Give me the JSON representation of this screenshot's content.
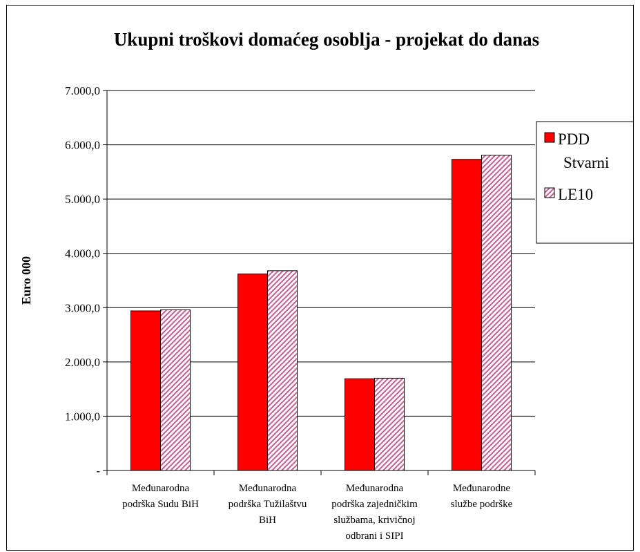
{
  "chart_data": {
    "type": "bar",
    "title": "Ukupni troškovi domaćeg osoblja - projekat do danas",
    "xlabel": "",
    "ylabel": "Euro 000",
    "ylim": [
      0,
      7000
    ],
    "yticks": [
      0,
      1000,
      2000,
      3000,
      4000,
      5000,
      6000,
      7000
    ],
    "ytick_labels": [
      "-",
      "1.000,0",
      "2.000,0",
      "3.000,0",
      "4.000,0",
      "5.000,0",
      "6.000,0",
      "7.000,0"
    ],
    "grid": true,
    "legend_position": "right",
    "categories": [
      [
        "Međunarodna",
        "podrška Sudu BiH"
      ],
      [
        "Međunarodna",
        "podrška Tužilaštvu",
        "BiH"
      ],
      [
        "Međunarodna",
        "podrška zajedničkim",
        "službama, krivičnoj",
        "odbrani i SIPI"
      ],
      [
        "Međunarodne",
        "službe podrške"
      ]
    ],
    "series": [
      {
        "name": "PDD Stvarni",
        "legend_lines": [
          "PDD",
          "Stvarni"
        ],
        "color": "#ff0000",
        "pattern": "solid",
        "values": [
          2940,
          3620,
          1690,
          5730
        ]
      },
      {
        "name": "LE10",
        "legend_lines": [
          "LE10"
        ],
        "color": "#cc6699",
        "pattern": "diagonal-hatch",
        "values": [
          2960,
          3680,
          1700,
          5810
        ]
      }
    ]
  }
}
